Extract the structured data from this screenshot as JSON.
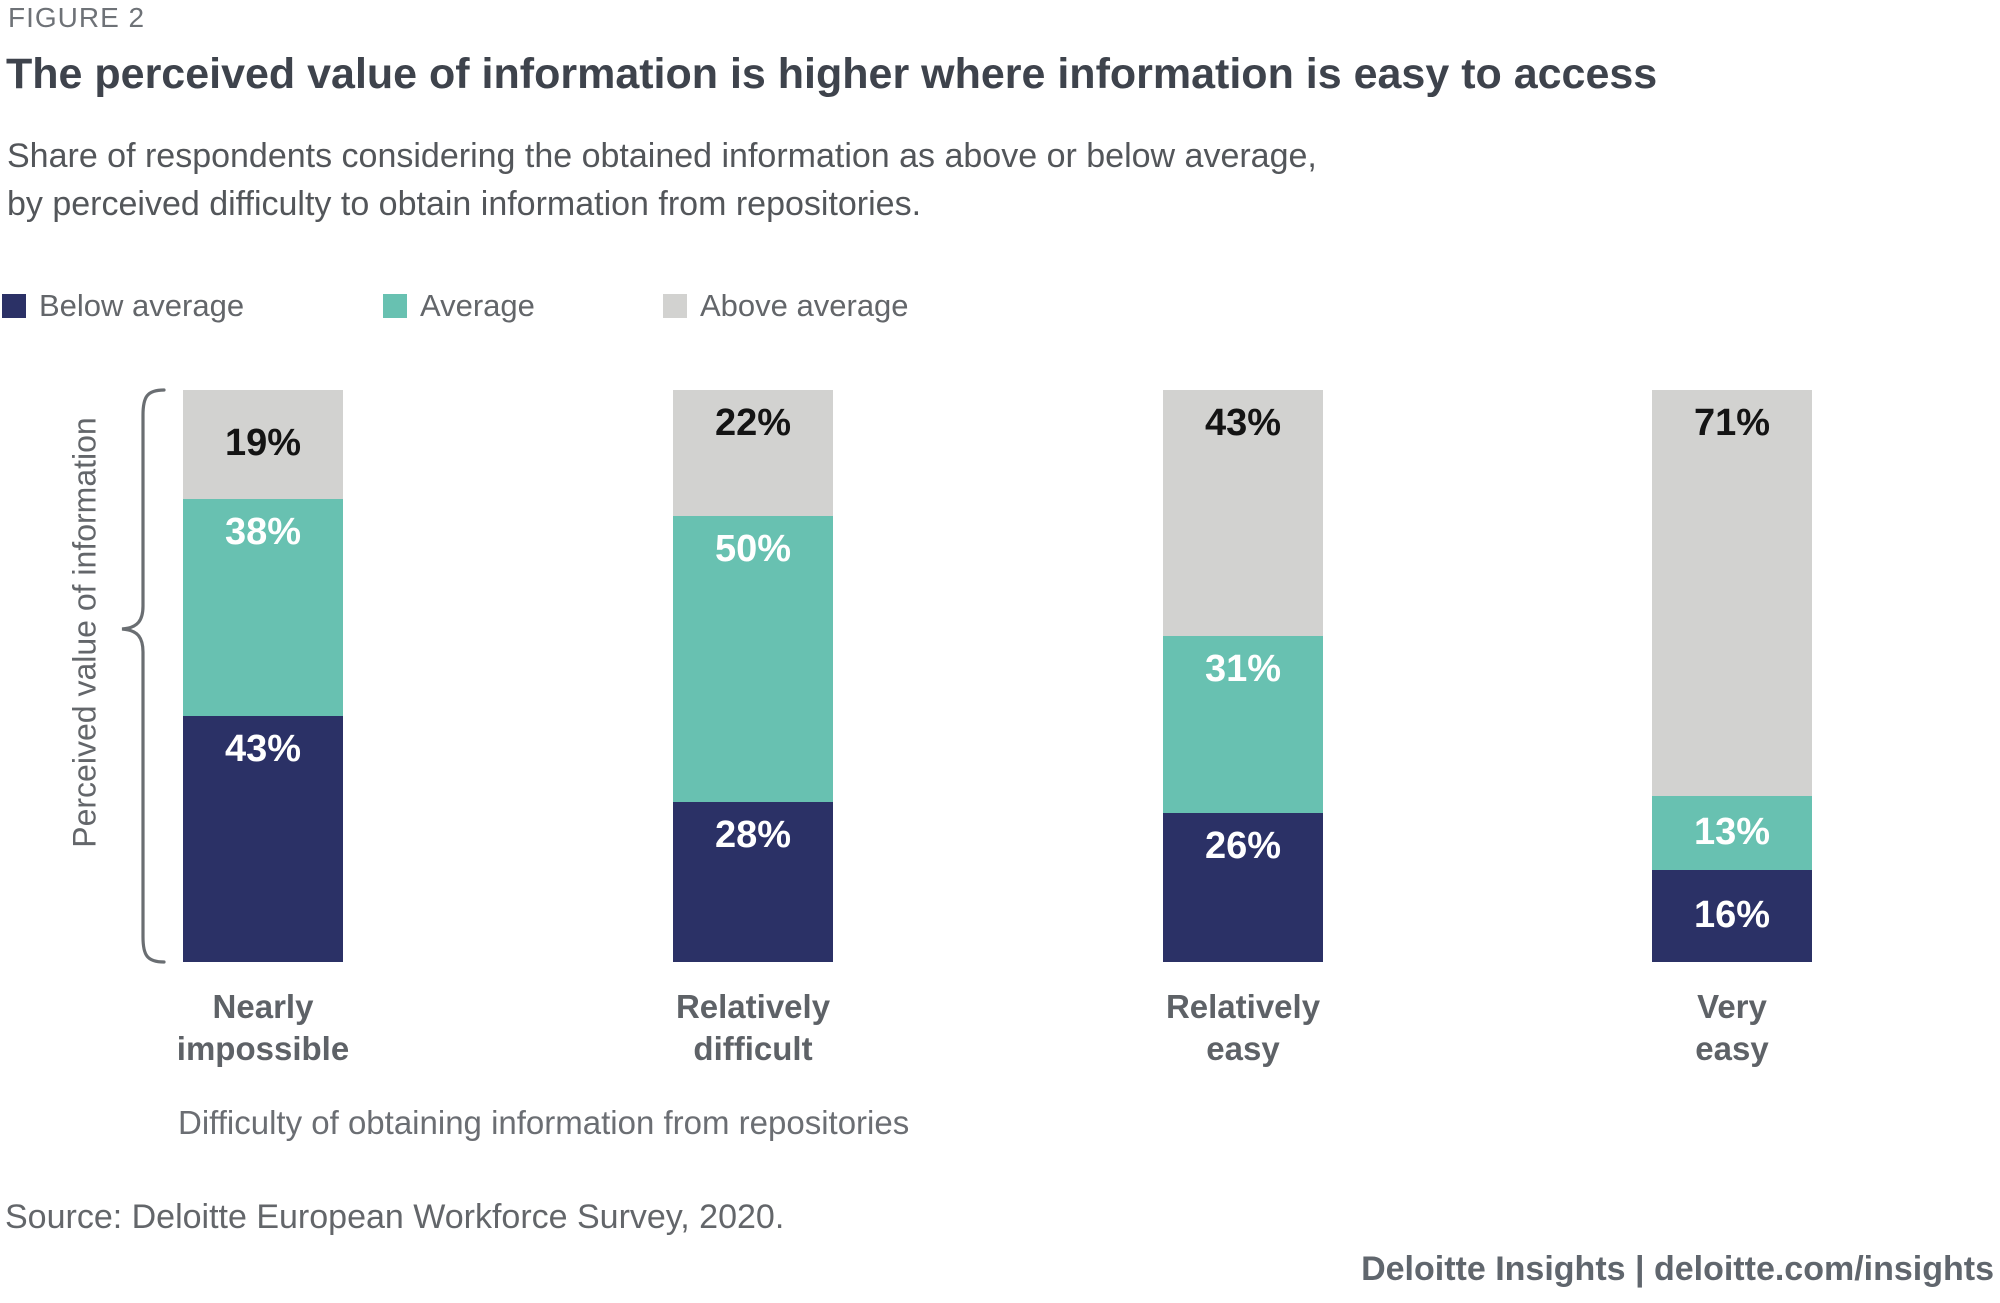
{
  "figure_label": "FIGURE 2",
  "title": "The perceived value of information is higher where information is easy to access",
  "subtitle": "Share of respondents considering the obtained information as above or below average,\nby perceived difficulty to obtain information from repositories.",
  "source": "Source: Deloitte European Workforce Survey, 2020.",
  "footer": "Deloitte Insights | deloitte.com/insights",
  "chart_data": {
    "type": "bar",
    "stacking": "percent",
    "orientation": "vertical",
    "categories": [
      "Nearly impossible",
      "Relatively difficult",
      "Relatively easy",
      "Very easy"
    ],
    "series": [
      {
        "name": "Below average",
        "color": "#2B3166",
        "label_color": "#FFFFFF",
        "values": [
          43,
          28,
          26,
          16
        ]
      },
      {
        "name": "Average",
        "color": "#68C1B1",
        "label_color": "#FFFFFF",
        "values": [
          38,
          50,
          31,
          13
        ]
      },
      {
        "name": "Above average",
        "color": "#D2D2D0",
        "label_color": "#141414",
        "values": [
          19,
          22,
          43,
          71
        ]
      }
    ],
    "stack_order_top_to_bottom": [
      "Above average",
      "Average",
      "Below average"
    ],
    "value_suffix": "%",
    "xlabel": "Difficulty of obtaining information from repositories",
    "ylabel": "Perceived value of information",
    "legend_position": "top",
    "axis_range": [
      0,
      100
    ],
    "gridlines": false,
    "brace_color": "#6A6E72"
  }
}
